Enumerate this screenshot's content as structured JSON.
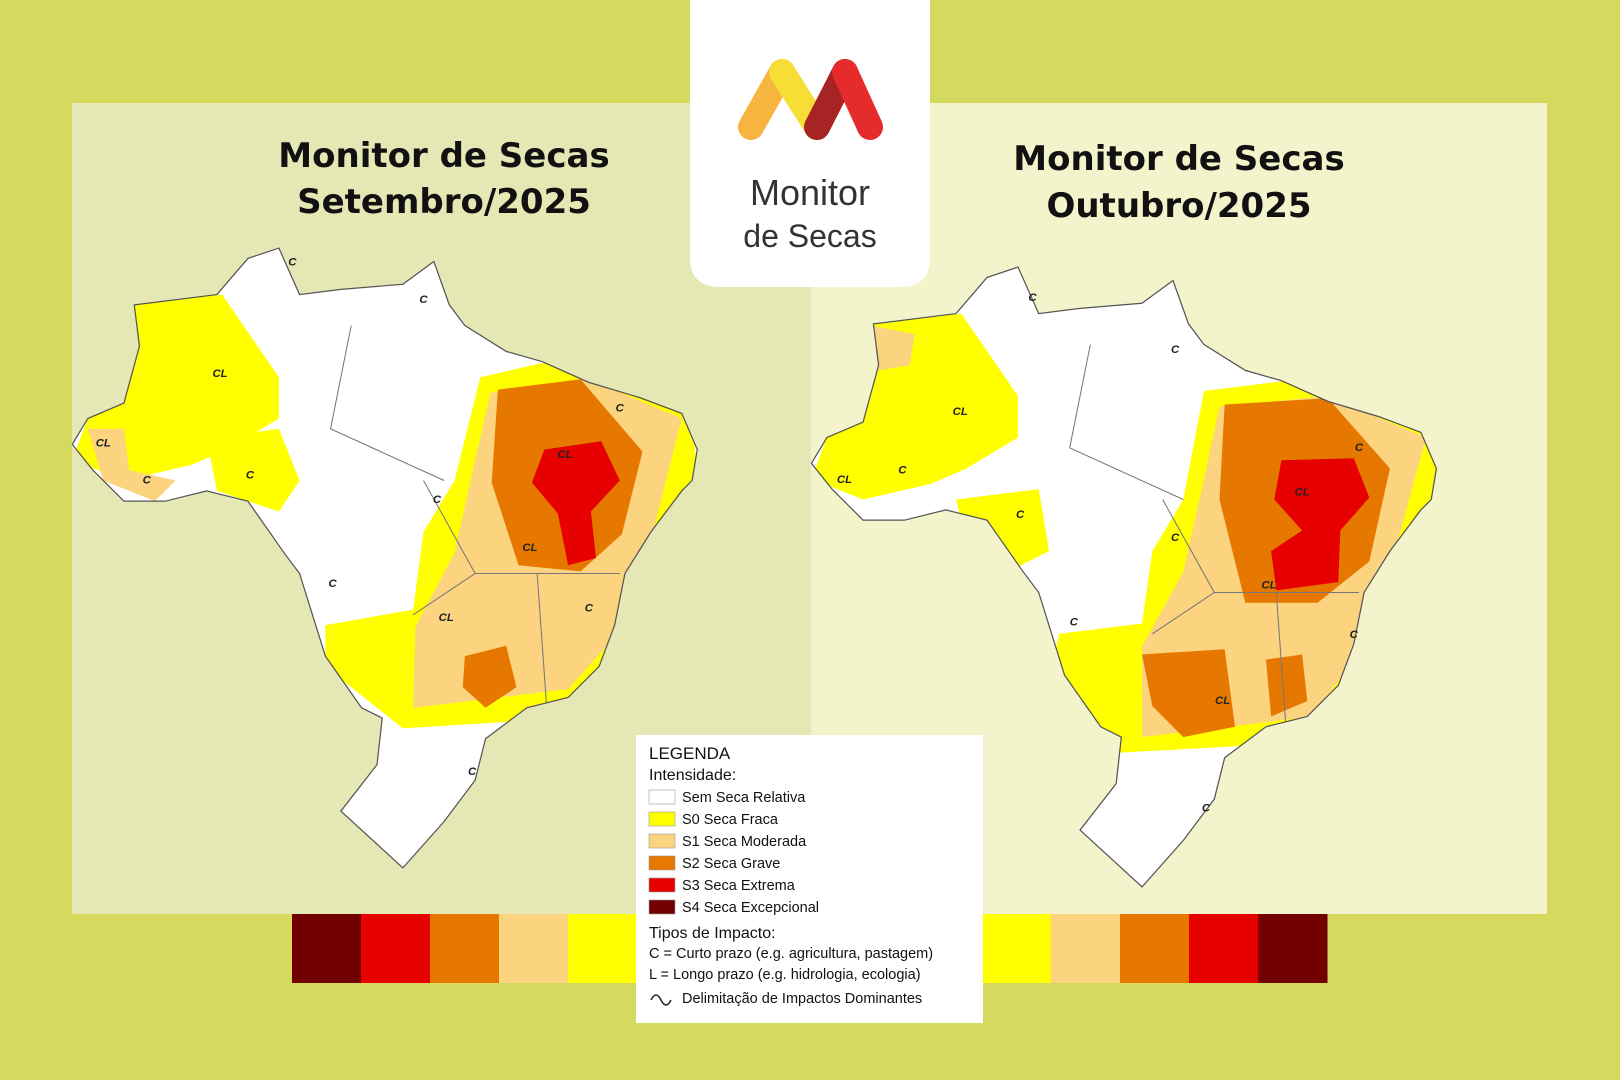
{
  "logo": {
    "line1": "Monitor",
    "line2": "de Secas"
  },
  "maps": [
    {
      "title_line1": "Monitor de Secas",
      "title_line2": "Setembro/2025",
      "labels": [
        "C",
        "C",
        "CL",
        "CL",
        "C",
        "C",
        "CL",
        "C",
        "C",
        "C",
        "CL",
        "C",
        "CL",
        "C"
      ]
    },
    {
      "title_line1": "Monitor de Secas",
      "title_line2": "Outubro/2025",
      "labels": [
        "C",
        "C",
        "CL",
        "CL",
        "C",
        "C",
        "CL",
        "C",
        "C",
        "C",
        "CL",
        "C",
        "CL",
        "C"
      ]
    }
  ],
  "legend": {
    "title": "LEGENDA",
    "intensity_heading": "Intensidade:",
    "items": [
      {
        "label": "Sem Seca Relativa",
        "color": "#ffffff"
      },
      {
        "label": "S0 Seca Fraca",
        "color": "#ffff00"
      },
      {
        "label": "S1 Seca Moderada",
        "color": "#fcd37f"
      },
      {
        "label": "S2 Seca Grave",
        "color": "#e67800"
      },
      {
        "label": "S3 Seca Extrema",
        "color": "#e60000"
      },
      {
        "label": "S4 Seca Excepcional",
        "color": "#730000"
      }
    ],
    "impact_heading": "Tipos de Impacto:",
    "impacts": [
      "C = Curto prazo (e.g. agricultura, pastagem)",
      "L = Longo prazo (e.g. hidrologia, ecologia)"
    ],
    "delimitation": "Delimitação de Impactos Dominantes"
  }
}
